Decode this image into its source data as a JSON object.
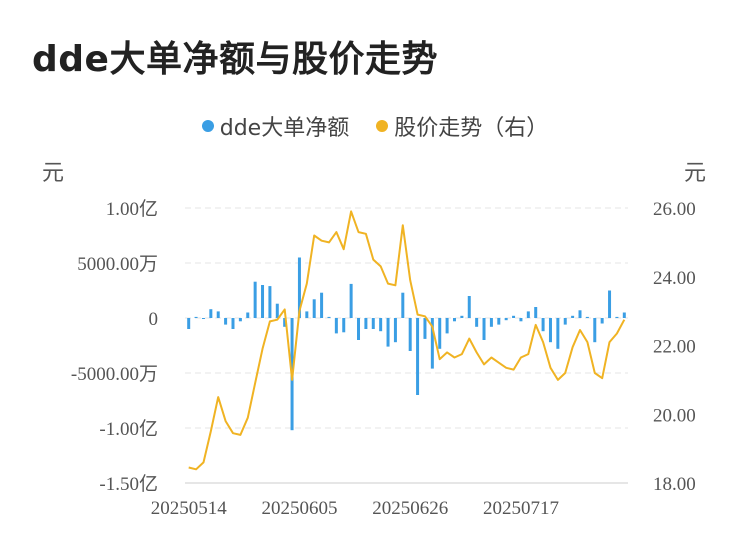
{
  "title": "dde大单净额与股价走势",
  "legend": [
    {
      "label": "dde大单净额",
      "color": "#3a9ee4"
    },
    {
      "label": "股价走势（右）",
      "color": "#f0b323"
    }
  ],
  "units": {
    "left": "元",
    "right": "元"
  },
  "chart_data": {
    "type": "bar+line",
    "x_ticks": [
      "20250514",
      "20250605",
      "20250626",
      "20250717"
    ],
    "left_axis": {
      "ticks": [
        "1.00亿",
        "5000.00万",
        "0",
        "-5000.00万",
        "-1.00亿",
        "-1.50亿"
      ],
      "ylim": [
        -1.5,
        1.0
      ],
      "unit": "亿元"
    },
    "right_axis": {
      "ticks": [
        "26.00",
        "24.00",
        "22.00",
        "20.00",
        "18.00"
      ],
      "ylim": [
        18,
        26
      ]
    },
    "grid": true,
    "series": [
      {
        "name": "dde大单净额",
        "type": "bar",
        "color": "#3a9ee4",
        "values": [
          -0.1,
          0.01,
          0,
          0.08,
          0.06,
          -0.06,
          -0.1,
          -0.03,
          0.05,
          0.33,
          0.3,
          0.29,
          0.13,
          -0.08,
          -1.02,
          0.55,
          0.06,
          0.17,
          0.23,
          0.01,
          -0.14,
          -0.13,
          0.31,
          -0.2,
          -0.1,
          -0.1,
          -0.12,
          -0.26,
          -0.22,
          0.23,
          -0.3,
          -0.7,
          -0.19,
          -0.46,
          -0.28,
          -0.14,
          -0.03,
          0.02,
          0.2,
          -0.08,
          -0.2,
          -0.08,
          -0.06,
          -0.02,
          0.02,
          -0.03,
          0.06,
          0.1,
          -0.12,
          -0.22,
          -0.28,
          -0.06,
          0.02,
          0.07,
          0.01,
          -0.22,
          -0.05,
          0.25,
          0.01,
          0.05
        ]
      },
      {
        "name": "股价走势（右）",
        "type": "line",
        "color": "#f0b323",
        "values": [
          18.45,
          18.4,
          18.6,
          19.5,
          20.5,
          19.8,
          19.45,
          19.4,
          19.9,
          20.9,
          21.9,
          22.7,
          22.75,
          23.05,
          21.0,
          23.0,
          23.8,
          25.2,
          25.05,
          25.0,
          25.3,
          24.8,
          25.9,
          25.3,
          25.25,
          24.5,
          24.3,
          23.8,
          23.75,
          25.5,
          23.9,
          22.9,
          22.85,
          22.55,
          21.6,
          21.8,
          21.65,
          21.75,
          22.2,
          21.8,
          21.45,
          21.65,
          21.5,
          21.35,
          21.3,
          21.65,
          21.75,
          22.6,
          22.1,
          21.35,
          21.0,
          21.2,
          21.95,
          22.45,
          22.1,
          21.2,
          21.05,
          22.1,
          22.35,
          22.75
        ]
      }
    ]
  }
}
